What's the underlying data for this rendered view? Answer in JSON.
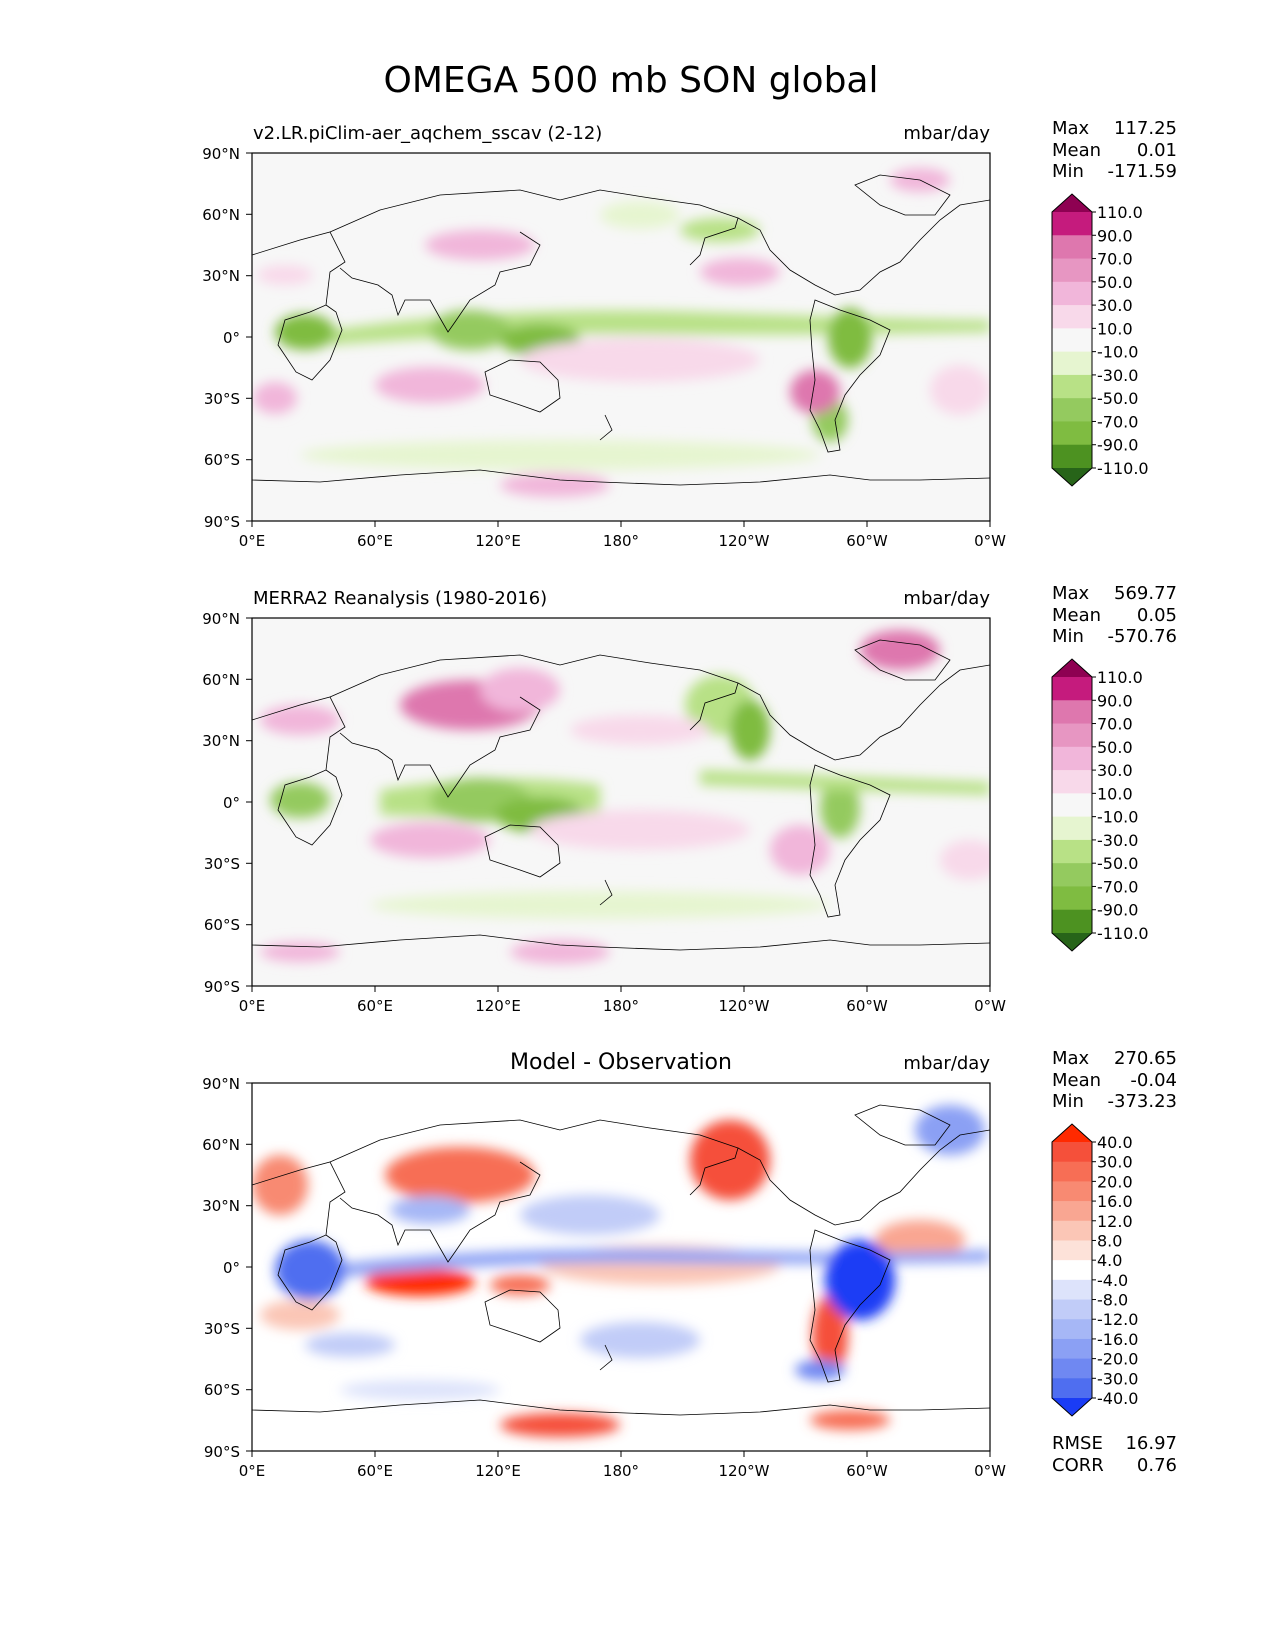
{
  "figure": {
    "title": "OMEGA 500 mb SON global"
  },
  "axes": {
    "lat_ticks": [
      "90°N",
      "60°N",
      "30°N",
      "0°",
      "30°S",
      "60°S",
      "90°S"
    ],
    "lon_ticks": [
      "0°E",
      "60°E",
      "120°E",
      "180°",
      "120°W",
      "60°W",
      "0°W"
    ]
  },
  "panels": [
    {
      "name": "model",
      "left_title": "v2.LR.piClim-aer_aqchem_sscav (2-12)",
      "center_title": "",
      "units": "mbar/day",
      "stats": [
        {
          "label": "Max",
          "value": "117.25"
        },
        {
          "label": "Mean",
          "value": "0.01"
        },
        {
          "label": "Min",
          "value": "-171.59"
        }
      ],
      "colorbar": {
        "labels": [
          "110.0",
          "90.0",
          "70.0",
          "50.0",
          "30.0",
          "10.0",
          "-10.0",
          "-30.0",
          "-50.0",
          "-70.0",
          "-90.0",
          "-110.0"
        ],
        "colors": [
          "#8e0152",
          "#c51b7d",
          "#de77ae",
          "#e796c2",
          "#f1b6da",
          "#f8d9ea",
          "#f7f7f7",
          "#e6f5d0",
          "#b8e186",
          "#94ca5f",
          "#7fbc41",
          "#4d9221",
          "#276419"
        ]
      },
      "extra_stats": []
    },
    {
      "name": "observation",
      "left_title": "MERRA2 Reanalysis (1980-2016)",
      "center_title": "",
      "units": "mbar/day",
      "stats": [
        {
          "label": "Max",
          "value": "569.77"
        },
        {
          "label": "Mean",
          "value": "0.05"
        },
        {
          "label": "Min",
          "value": "-570.76"
        }
      ],
      "colorbar": {
        "labels": [
          "110.0",
          "90.0",
          "70.0",
          "50.0",
          "30.0",
          "10.0",
          "-10.0",
          "-30.0",
          "-50.0",
          "-70.0",
          "-90.0",
          "-110.0"
        ],
        "colors": [
          "#8e0152",
          "#c51b7d",
          "#de77ae",
          "#e796c2",
          "#f1b6da",
          "#f8d9ea",
          "#f7f7f7",
          "#e6f5d0",
          "#b8e186",
          "#94ca5f",
          "#7fbc41",
          "#4d9221",
          "#276419"
        ]
      },
      "extra_stats": []
    },
    {
      "name": "difference",
      "left_title": "",
      "center_title": "Model - Observation",
      "units": "mbar/day",
      "stats": [
        {
          "label": "Max",
          "value": "270.65"
        },
        {
          "label": "Mean",
          "value": "-0.04"
        },
        {
          "label": "Min",
          "value": "-373.23"
        }
      ],
      "colorbar": {
        "labels": [
          "40.0",
          "30.0",
          "20.0",
          "16.0",
          "12.0",
          "8.0",
          "4.0",
          "-4.0",
          "-8.0",
          "-12.0",
          "-16.0",
          "-20.0",
          "-30.0",
          "-40.0"
        ],
        "colors": [
          "#ff2a00",
          "#f5503a",
          "#f76e55",
          "#f88a72",
          "#f9a692",
          "#fbc6b6",
          "#fde2d9",
          "#ffffff",
          "#dde3fb",
          "#c1ccf8",
          "#a6b7f6",
          "#8ba0f4",
          "#6f88f2",
          "#4f6ef0",
          "#1a3cf5"
        ]
      },
      "extra_stats": [
        {
          "label": "RMSE",
          "value": "16.97"
        },
        {
          "label": "CORR",
          "value": "0.76"
        }
      ]
    }
  ],
  "map_colors": {
    "ocean_neutral": "#f7f7f7",
    "coastline": "#000000"
  }
}
